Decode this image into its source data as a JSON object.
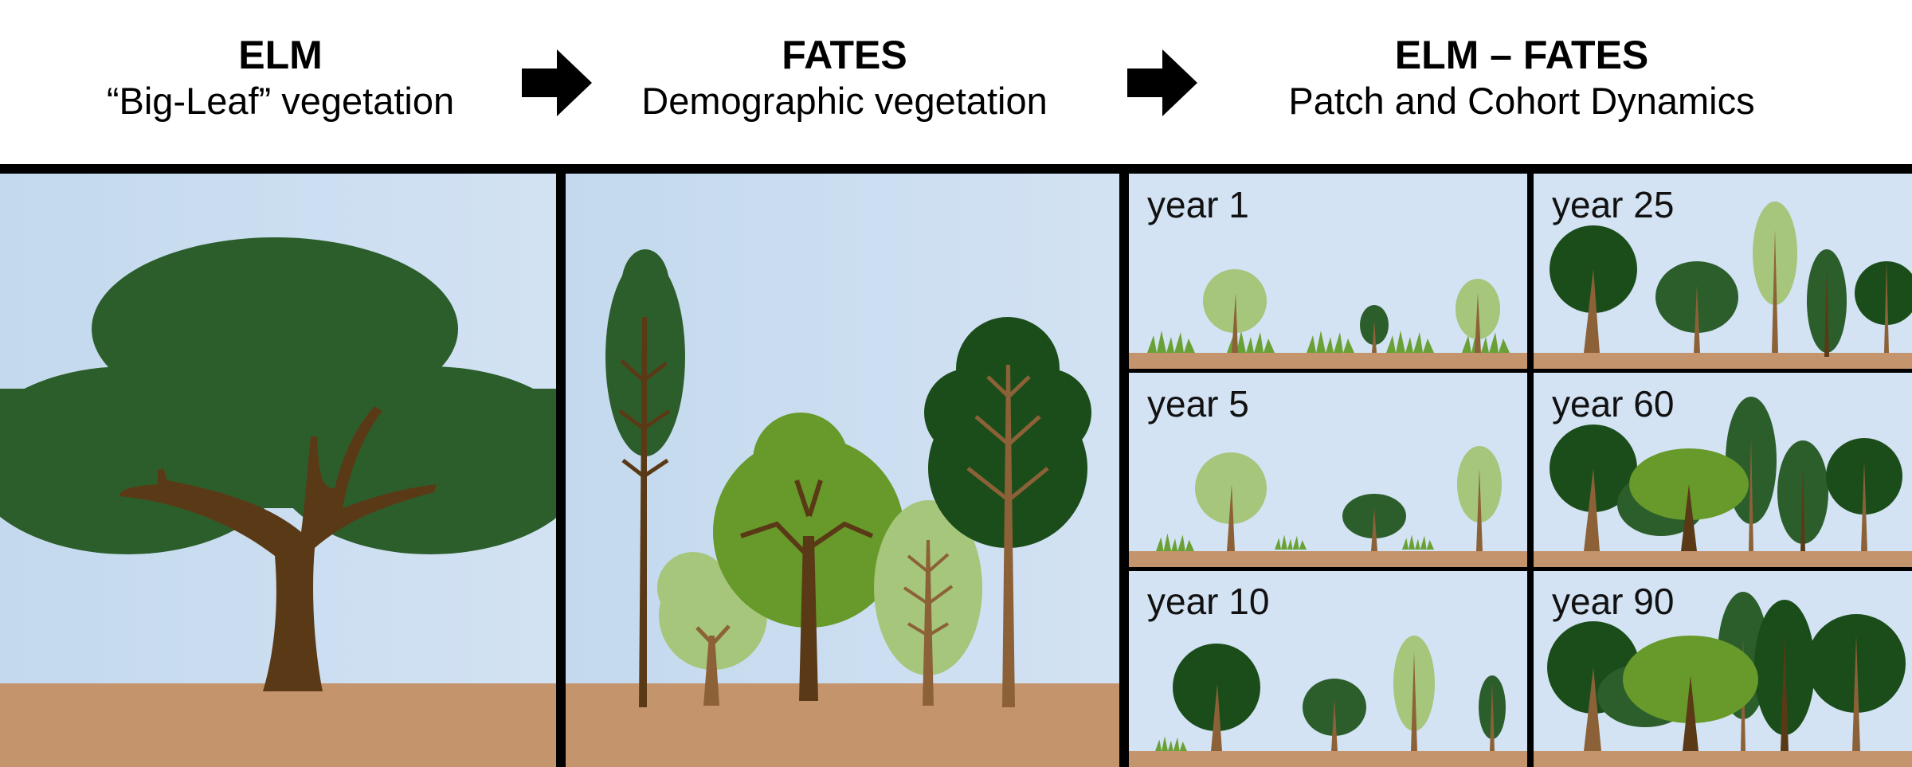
{
  "header": {
    "elm": {
      "title": "ELM",
      "subtitle": "“Big-Leaf” vegetation"
    },
    "fates": {
      "title": "FATES",
      "subtitle": "Demographic vegetation"
    },
    "elm_fates": {
      "title": "ELM – FATES",
      "subtitle": "Patch and Cohort Dynamics"
    }
  },
  "panels": [
    {
      "label": "year 1"
    },
    {
      "label": "year 5"
    },
    {
      "label": "year 10"
    },
    {
      "label": "year 25"
    },
    {
      "label": "year 60"
    },
    {
      "label": "year 90"
    }
  ],
  "colors": {
    "sky": "#c9dcef",
    "ground": "#c4946c",
    "dark_green": "#2c5e2c",
    "forest_green": "#1b4d1b",
    "mid_green": "#679a2a",
    "light_green": "#a5c67b",
    "trunk_dark": "#5a3a16",
    "trunk_light": "#8d6137",
    "grass": "#6aa136"
  },
  "icons": [
    "arrow-right-icon",
    "tree-icon",
    "grass-icon"
  ]
}
